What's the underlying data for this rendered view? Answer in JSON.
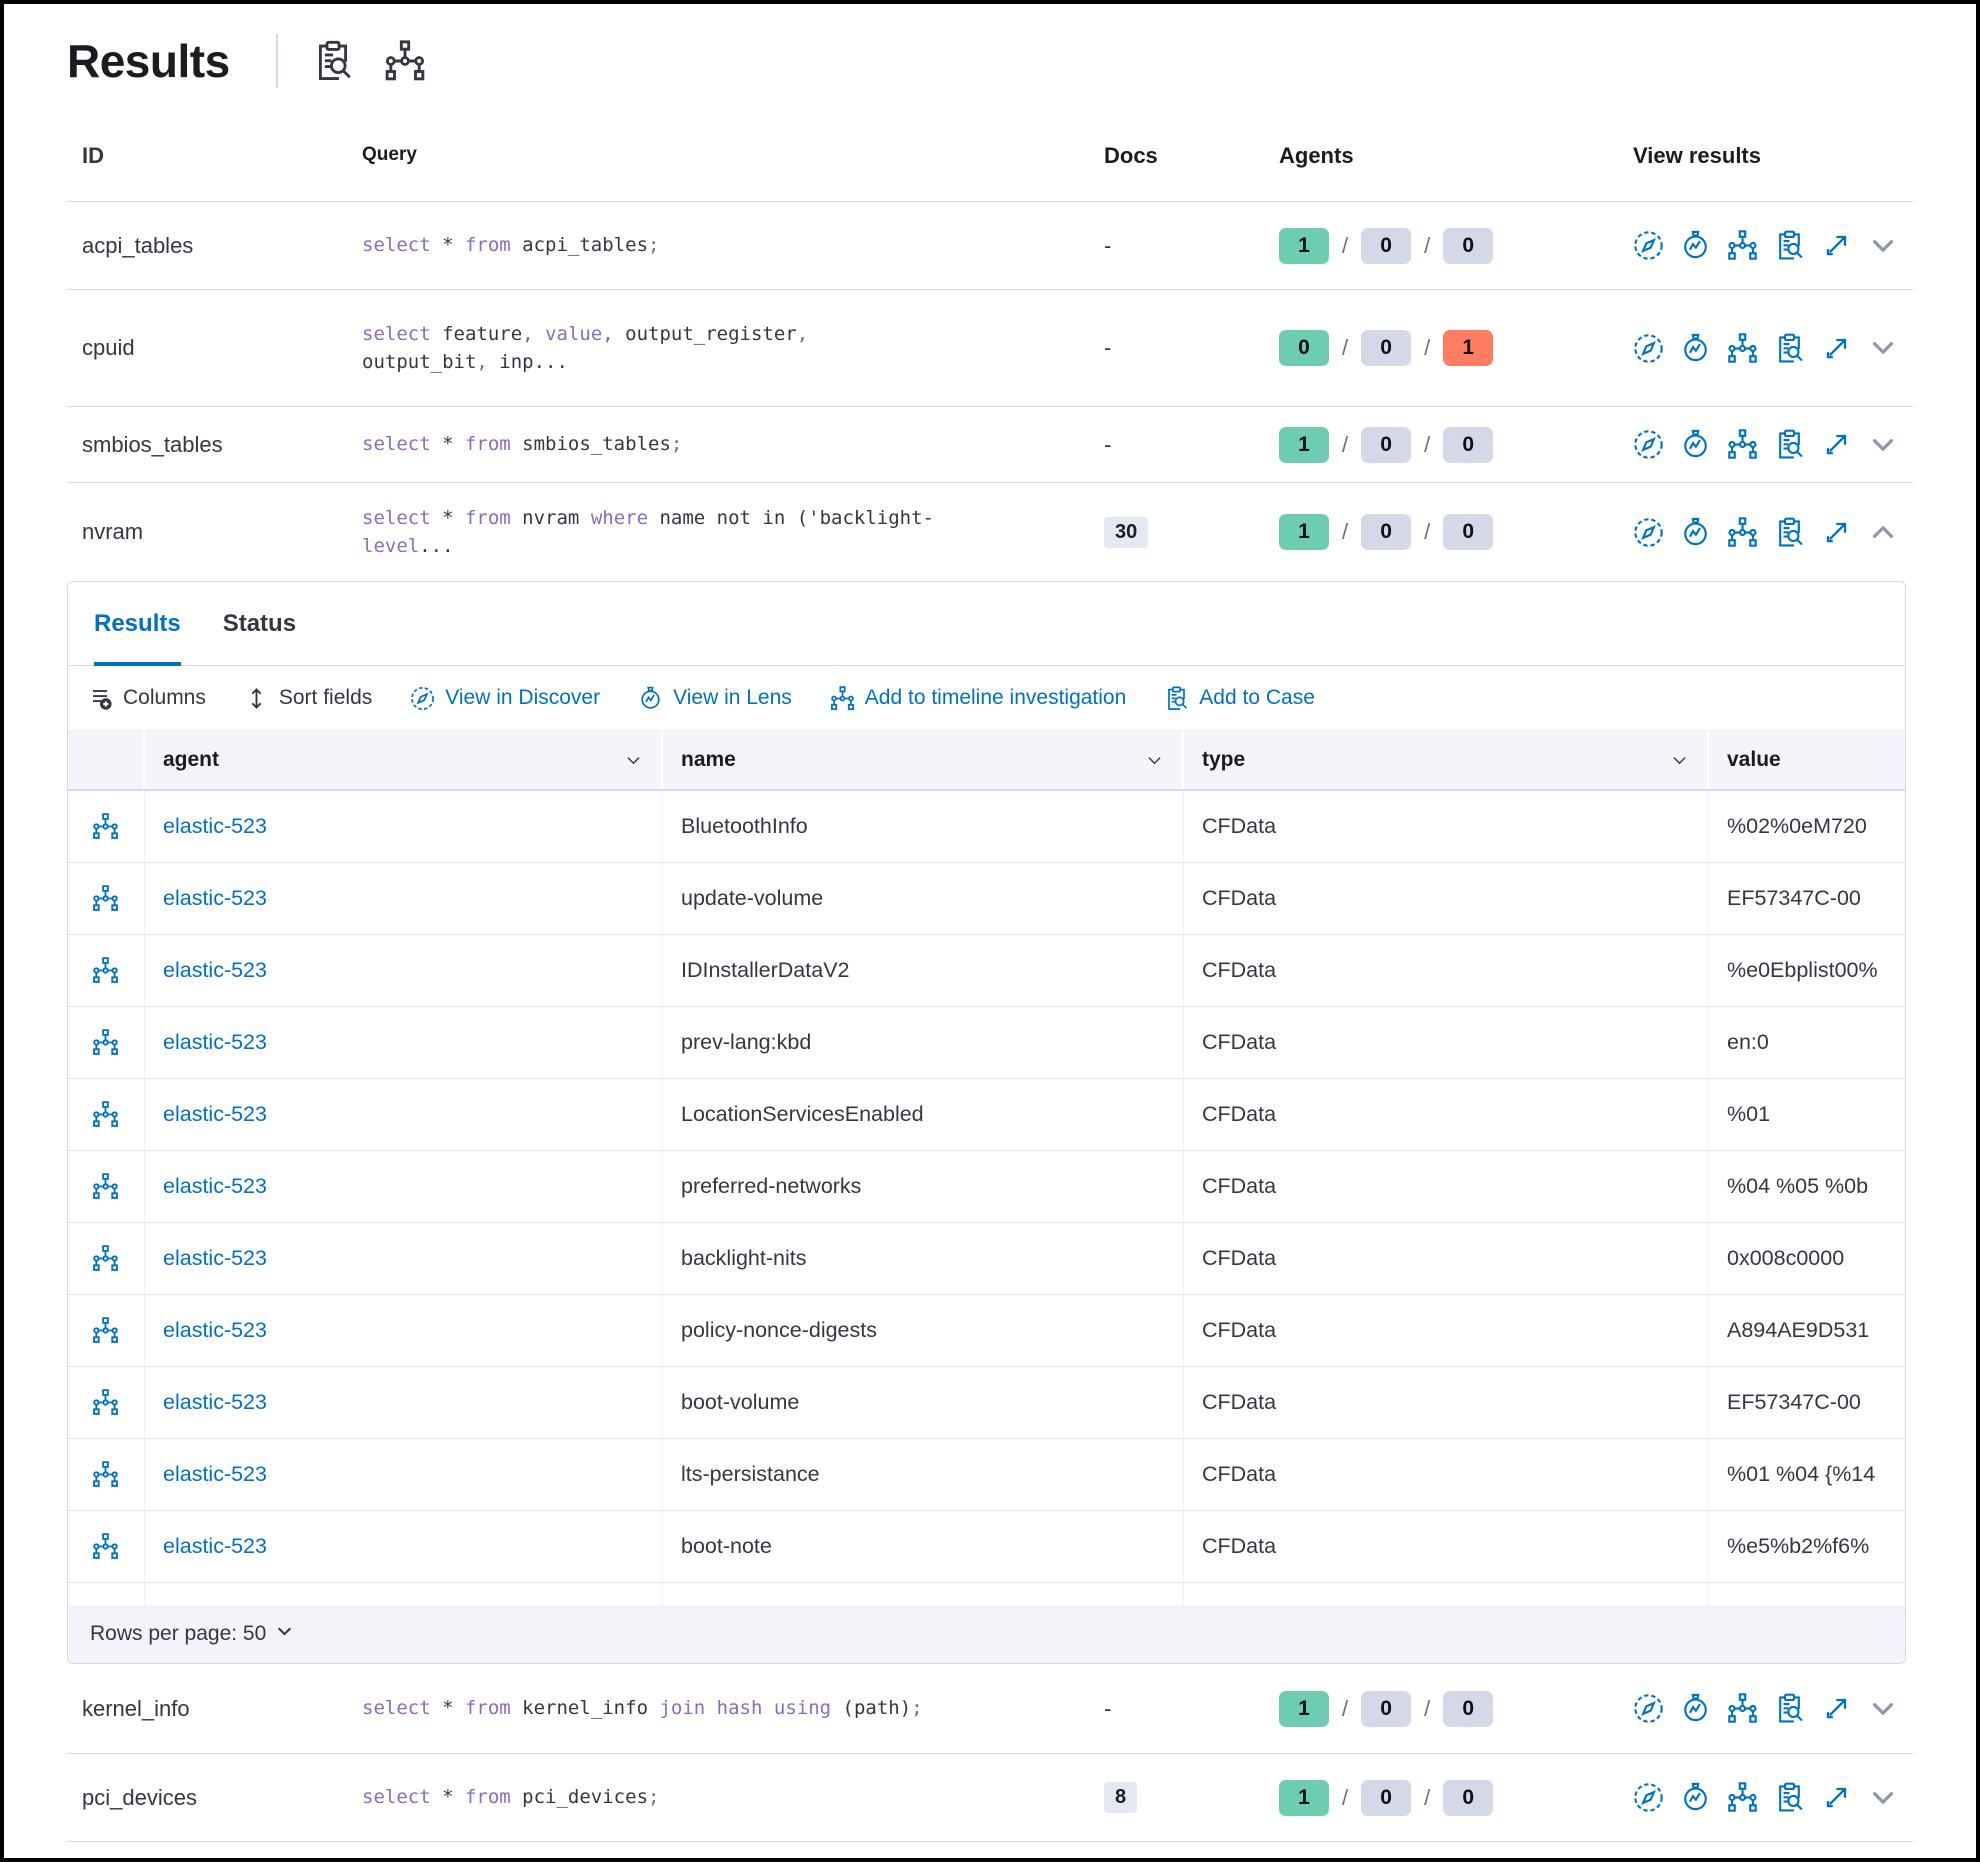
{
  "header": {
    "title": "Results",
    "icons": [
      "live-query-details",
      "packs"
    ]
  },
  "colors": {
    "primary_blue": "#0071c2",
    "success_green": "#6dccb1",
    "danger_red": "#ff7e62",
    "neutral_badge": "#d3d9e6",
    "keyword_purple": "#8c6bb8",
    "text_dark": "#343741",
    "border_gray": "#d3dae6"
  },
  "outer_table": {
    "headers": [
      "ID",
      "Query",
      "Docs",
      "Agents",
      "View results"
    ],
    "view_action_icons": [
      "view-in-discover",
      "view-in-lens",
      "add-to-timeline",
      "add-to-case",
      "expand-results"
    ],
    "rows": [
      {
        "id": "acpi_tables",
        "query_tokens": [
          [
            "k",
            "select"
          ],
          [
            "t",
            " * "
          ],
          [
            "k",
            "from"
          ],
          [
            "t",
            " acpi_tables"
          ],
          [
            "p",
            ";"
          ]
        ],
        "docs": "-",
        "docs_badge": false,
        "agents": [
          {
            "value": "1",
            "color": "green"
          },
          {
            "value": "0",
            "color": "gray"
          },
          {
            "value": "0",
            "color": "gray"
          }
        ],
        "expanded": false
      },
      {
        "id": "cpuid",
        "query_tokens": [
          [
            "k",
            "select"
          ],
          [
            "t",
            " feature"
          ],
          [
            "p",
            ","
          ],
          [
            "t",
            " "
          ],
          [
            "k",
            "value"
          ],
          [
            "p",
            ","
          ],
          [
            "t",
            " output_register"
          ],
          [
            "p",
            ","
          ],
          [
            "t",
            " output_bit"
          ],
          [
            "p",
            ","
          ],
          [
            "t",
            " inp..."
          ]
        ],
        "docs": "-",
        "docs_badge": false,
        "agents": [
          {
            "value": "0",
            "color": "green"
          },
          {
            "value": "0",
            "color": "gray"
          },
          {
            "value": "1",
            "color": "red"
          }
        ],
        "expanded": false
      },
      {
        "id": "smbios_tables",
        "query_tokens": [
          [
            "k",
            "select"
          ],
          [
            "t",
            " * "
          ],
          [
            "k",
            "from"
          ],
          [
            "t",
            " smbios_tables"
          ],
          [
            "p",
            ";"
          ]
        ],
        "docs": "-",
        "docs_badge": false,
        "agents": [
          {
            "value": "1",
            "color": "green"
          },
          {
            "value": "0",
            "color": "gray"
          },
          {
            "value": "0",
            "color": "gray"
          }
        ],
        "expanded": false
      },
      {
        "id": "nvram",
        "query_tokens": [
          [
            "k",
            "select"
          ],
          [
            "t",
            " * "
          ],
          [
            "k",
            "from"
          ],
          [
            "t",
            " nvram "
          ],
          [
            "k",
            "where"
          ],
          [
            "t",
            " name not in ('backlight-"
          ],
          [
            "k",
            "level"
          ],
          [
            "t",
            "..."
          ]
        ],
        "docs": "30",
        "docs_badge": true,
        "agents": [
          {
            "value": "1",
            "color": "green"
          },
          {
            "value": "0",
            "color": "gray"
          },
          {
            "value": "0",
            "color": "gray"
          }
        ],
        "expanded": true
      },
      {
        "id": "kernel_info",
        "query_tokens": [
          [
            "k",
            "select"
          ],
          [
            "t",
            " * "
          ],
          [
            "k",
            "from"
          ],
          [
            "t",
            " kernel_info "
          ],
          [
            "k",
            "join"
          ],
          [
            "t",
            " "
          ],
          [
            "k",
            "hash"
          ],
          [
            "t",
            " "
          ],
          [
            "k",
            "using"
          ],
          [
            "t",
            " (path)"
          ],
          [
            "p",
            ";"
          ]
        ],
        "docs": "-",
        "docs_badge": false,
        "agents": [
          {
            "value": "1",
            "color": "green"
          },
          {
            "value": "0",
            "color": "gray"
          },
          {
            "value": "0",
            "color": "gray"
          }
        ],
        "expanded": false
      },
      {
        "id": "pci_devices",
        "query_tokens": [
          [
            "k",
            "select"
          ],
          [
            "t",
            " * "
          ],
          [
            "k",
            "from"
          ],
          [
            "t",
            " pci_devices"
          ],
          [
            "p",
            ";"
          ]
        ],
        "docs": "8",
        "docs_badge": true,
        "agents": [
          {
            "value": "1",
            "color": "green"
          },
          {
            "value": "0",
            "color": "gray"
          },
          {
            "value": "0",
            "color": "gray"
          }
        ],
        "expanded": false
      }
    ]
  },
  "panel": {
    "tabs": [
      {
        "label": "Results",
        "active": true
      },
      {
        "label": "Status",
        "active": false
      }
    ],
    "toolbar": [
      {
        "label": "Columns"
      },
      {
        "label": "Sort fields"
      },
      {
        "label": "View in Discover"
      },
      {
        "label": "View in Lens"
      },
      {
        "label": "Add to timeline investigation"
      },
      {
        "label": "Add to Case"
      }
    ],
    "grid": {
      "columns": [
        {
          "label": "agent",
          "sortable": true
        },
        {
          "label": "name",
          "sortable": true
        },
        {
          "label": "type",
          "sortable": true
        },
        {
          "label": "value",
          "sortable": false
        }
      ],
      "rows": [
        {
          "agent": "elastic-523",
          "name": "BluetoothInfo",
          "type": "CFData",
          "value": "%02%0eM720"
        },
        {
          "agent": "elastic-523",
          "name": "update-volume",
          "type": "CFData",
          "value": "EF57347C-00"
        },
        {
          "agent": "elastic-523",
          "name": "IDInstallerDataV2",
          "type": "CFData",
          "value": "%e0Ebplist00%"
        },
        {
          "agent": "elastic-523",
          "name": "prev-lang:kbd",
          "type": "CFData",
          "value": "en:0"
        },
        {
          "agent": "elastic-523",
          "name": "LocationServicesEnabled",
          "type": "CFData",
          "value": "%01"
        },
        {
          "agent": "elastic-523",
          "name": "preferred-networks",
          "type": "CFData",
          "value": "%04 %05 %0b"
        },
        {
          "agent": "elastic-523",
          "name": "backlight-nits",
          "type": "CFData",
          "value": "0x008c0000"
        },
        {
          "agent": "elastic-523",
          "name": "policy-nonce-digests",
          "type": "CFData",
          "value": "A894AE9D531"
        },
        {
          "agent": "elastic-523",
          "name": "boot-volume",
          "type": "CFData",
          "value": "EF57347C-00"
        },
        {
          "agent": "elastic-523",
          "name": "lts-persistance",
          "type": "CFData",
          "value": "%01 %04 {%14"
        },
        {
          "agent": "elastic-523",
          "name": "boot-note",
          "type": "CFData",
          "value": "%e5%b2%f6%"
        }
      ]
    },
    "footer": {
      "rows_per_page": "Rows per page: 50"
    }
  }
}
